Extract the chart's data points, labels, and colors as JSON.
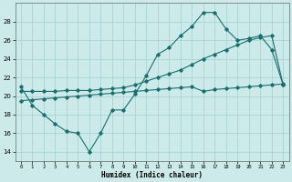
{
  "xlabel": "Humidex (Indice chaleur)",
  "background_color": "#cceaea",
  "grid_color": "#aad4d4",
  "line_color": "#1a6e6e",
  "xlim": [
    -0.5,
    23.5
  ],
  "ylim": [
    13.0,
    30.0
  ],
  "yticks": [
    14,
    16,
    18,
    20,
    22,
    24,
    26,
    28
  ],
  "xtick_labels": [
    "0",
    "1",
    "2",
    "3",
    "4",
    "5",
    "6",
    "7",
    "8",
    "9",
    "10",
    "11",
    "12",
    "13",
    "14",
    "15",
    "16",
    "17",
    "18",
    "19",
    "20",
    "21",
    "22",
    "23"
  ],
  "curve1_x": [
    0,
    1,
    2,
    3,
    4,
    5,
    6,
    7,
    8,
    9,
    10,
    11,
    12,
    13,
    14,
    15,
    16,
    17,
    18,
    19,
    20,
    21,
    22,
    23
  ],
  "curve1_y": [
    21.0,
    19.0,
    18.0,
    17.0,
    16.2,
    16.0,
    14.0,
    16.0,
    18.5,
    18.5,
    20.2,
    22.2,
    24.5,
    25.2,
    26.5,
    27.5,
    29.0,
    29.0,
    27.2,
    26.0,
    26.2,
    26.5,
    25.0,
    21.2
  ],
  "curve2_x": [
    0,
    1,
    2,
    3,
    4,
    5,
    6,
    7,
    8,
    9,
    10,
    11,
    12,
    13,
    14,
    15,
    16,
    17,
    18,
    19,
    20,
    21,
    22,
    23
  ],
  "curve2_y": [
    19.5,
    19.6,
    19.7,
    19.8,
    19.9,
    20.0,
    20.1,
    20.2,
    20.3,
    20.4,
    20.5,
    20.6,
    20.7,
    20.8,
    20.9,
    21.0,
    20.5,
    20.7,
    20.8,
    20.9,
    21.0,
    21.1,
    21.2,
    21.3
  ],
  "curve3_x": [
    0,
    1,
    2,
    3,
    4,
    5,
    6,
    7,
    8,
    9,
    10,
    11,
    12,
    13,
    14,
    15,
    16,
    17,
    18,
    19,
    20,
    21,
    22,
    23
  ],
  "curve3_y": [
    20.5,
    20.5,
    20.5,
    20.5,
    20.6,
    20.6,
    20.6,
    20.7,
    20.8,
    20.9,
    21.2,
    21.6,
    22.0,
    22.4,
    22.8,
    23.4,
    24.0,
    24.5,
    25.0,
    25.5,
    26.0,
    26.3,
    26.5,
    21.2
  ]
}
